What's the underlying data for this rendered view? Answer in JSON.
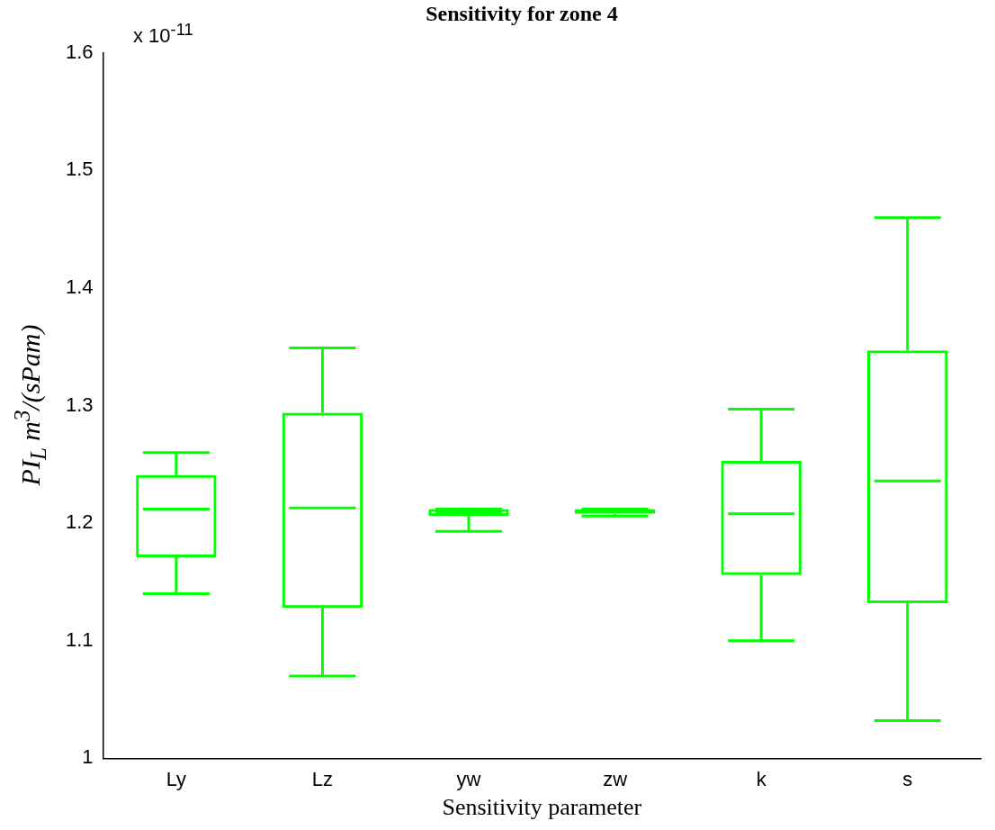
{
  "chart_data": {
    "type": "box",
    "title": "Sensitivity for zone 4",
    "xlabel": "Sensitivity parameter",
    "ylabel": "PI$_{L}$  m$^{3}$/(sPam)",
    "annotations": [
      "x 10$^{-11}$"
    ],
    "categories": [
      "Ly",
      "Lz",
      "yw",
      "zw",
      "k",
      "s"
    ],
    "series": [
      {
        "color": "#00ff00",
        "boxes": [
          {
            "low": 1.14,
            "q1": 1.171,
            "median": 1.212,
            "q3": 1.241,
            "high": 1.26
          },
          {
            "low": 1.07,
            "q1": 1.128,
            "median": 1.213,
            "q3": 1.294,
            "high": 1.349
          },
          {
            "low": 1.193,
            "q1": 1.206,
            "median": 1.209,
            "q3": 1.212,
            "high": 1.212
          },
          {
            "low": 1.206,
            "q1": 1.208,
            "median": 1.21,
            "q3": 1.212,
            "high": 1.212
          },
          {
            "low": 1.1,
            "q1": 1.156,
            "median": 1.208,
            "q3": 1.253,
            "high": 1.297
          },
          {
            "low": 1.032,
            "q1": 1.132,
            "median": 1.236,
            "q3": 1.347,
            "high": 1.46
          }
        ]
      }
    ],
    "ylim": [
      1,
      1.6
    ],
    "yticks": [
      1,
      1.1,
      1.2,
      1.3,
      1.4,
      1.5,
      1.6
    ],
    "grid": false,
    "legend": false
  }
}
